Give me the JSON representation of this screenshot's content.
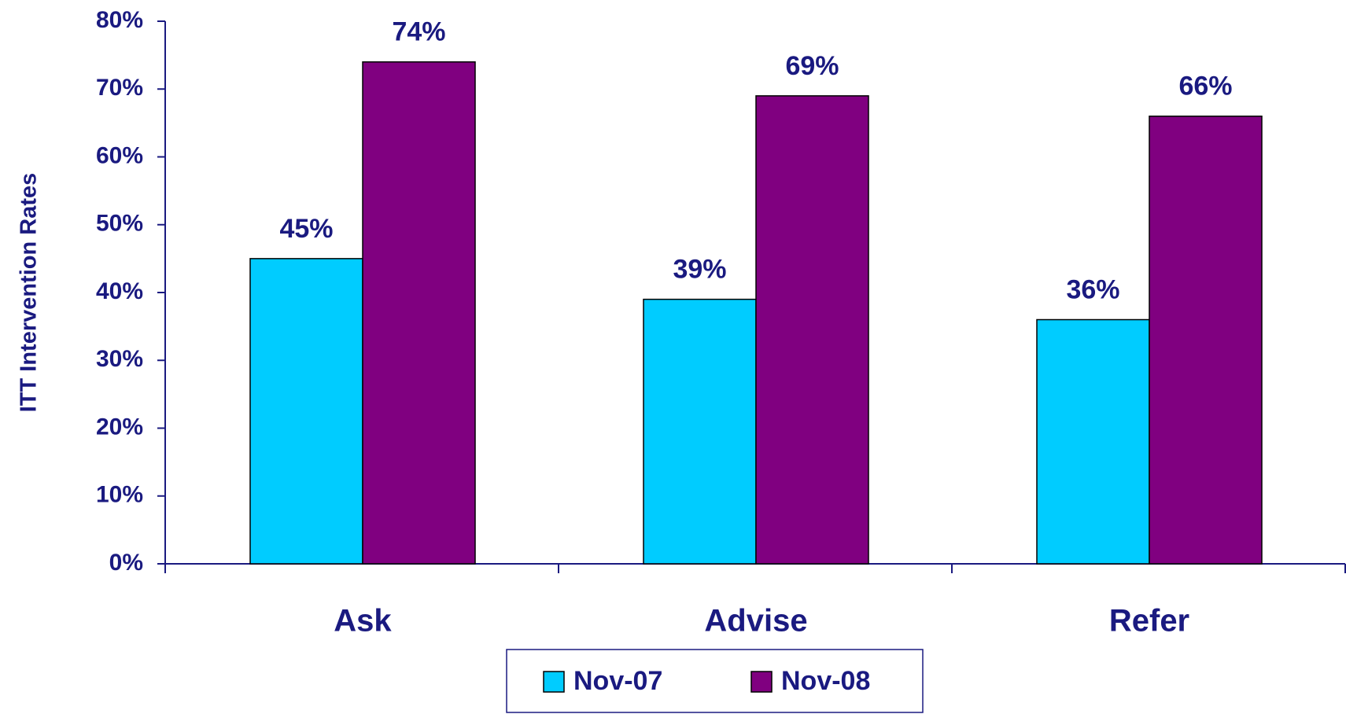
{
  "chart_data": {
    "type": "bar",
    "y_label": "ITT Intervention Rates",
    "categories": [
      "Ask",
      "Advise",
      "Refer"
    ],
    "series": [
      {
        "name": "Nov-07",
        "color": "#00ccff",
        "values": [
          45,
          39,
          36
        ],
        "value_labels": [
          "45%",
          "39%",
          "36%"
        ]
      },
      {
        "name": "Nov-08",
        "color": "#800080",
        "values": [
          74,
          69,
          66
        ],
        "value_labels": [
          "74%",
          "69%",
          "66%"
        ]
      }
    ],
    "ylim": [
      0,
      80
    ],
    "yticks": [
      {
        "value": 0,
        "label": "0%"
      },
      {
        "value": 10,
        "label": "10%"
      },
      {
        "value": 20,
        "label": "20%"
      },
      {
        "value": 30,
        "label": "30%"
      },
      {
        "value": 40,
        "label": "40%"
      },
      {
        "value": 50,
        "label": "50%"
      },
      {
        "value": 60,
        "label": "60%"
      },
      {
        "value": 70,
        "label": "70%"
      },
      {
        "value": 80,
        "label": "80%"
      }
    ],
    "legend": "bottom",
    "grid": false
  }
}
